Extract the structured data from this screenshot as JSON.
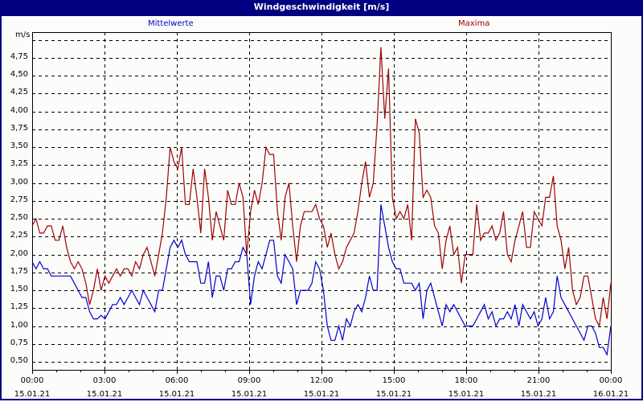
{
  "window": {
    "title": "Windgeschwindigkeit [m/s]"
  },
  "legend": {
    "mean": "Mittelwerte",
    "max": "Maxima"
  },
  "axis": {
    "unit": "m/s"
  },
  "colors": {
    "mean": "#0000d0",
    "max": "#a00000",
    "titlebar": "#000080"
  },
  "chart_data": {
    "type": "line",
    "title": "Windgeschwindigkeit [m/s]",
    "xlabel": "",
    "ylabel": "m/s",
    "ylim": [
      0.4,
      5.0
    ],
    "grid": true,
    "legend_position": "top",
    "y_ticks": [
      "0,50",
      "0,75",
      "1,00",
      "1,25",
      "1,50",
      "1,75",
      "2,00",
      "2,25",
      "2,50",
      "2,75",
      "3,00",
      "3,25",
      "3,50",
      "3,75",
      "4,00",
      "4,25",
      "4,50",
      "4,75"
    ],
    "x_ticks": [
      {
        "time": "00:00",
        "date": "15.01.21"
      },
      {
        "time": "03:00",
        "date": "15.01.21"
      },
      {
        "time": "06:00",
        "date": "15.01.21"
      },
      {
        "time": "09:00",
        "date": "15.01.21"
      },
      {
        "time": "12:00",
        "date": "15.01.21"
      },
      {
        "time": "15:00",
        "date": "15.01.21"
      },
      {
        "time": "18:00",
        "date": "15.01.21"
      },
      {
        "time": "21:00",
        "date": "15.01.21"
      },
      {
        "time": "00:00",
        "date": "16.01.21"
      }
    ],
    "x_interval_minutes": 10,
    "series": [
      {
        "name": "Mittelwerte",
        "values": [
          1.9,
          1.8,
          1.9,
          1.8,
          1.8,
          1.7,
          1.7,
          1.7,
          1.7,
          1.7,
          1.7,
          1.6,
          1.5,
          1.4,
          1.4,
          1.2,
          1.1,
          1.1,
          1.15,
          1.1,
          1.2,
          1.3,
          1.3,
          1.4,
          1.3,
          1.4,
          1.5,
          1.4,
          1.3,
          1.5,
          1.4,
          1.3,
          1.2,
          1.5,
          1.5,
          1.8,
          2.1,
          2.2,
          2.1,
          2.2,
          2.0,
          1.9,
          1.9,
          1.9,
          1.6,
          1.6,
          1.9,
          1.4,
          1.7,
          1.7,
          1.5,
          1.8,
          1.8,
          1.9,
          1.9,
          2.1,
          2.0,
          1.3,
          1.7,
          1.9,
          1.8,
          2.0,
          2.2,
          2.2,
          1.7,
          1.6,
          2.0,
          1.9,
          1.8,
          1.3,
          1.5,
          1.5,
          1.5,
          1.6,
          1.9,
          1.8,
          1.5,
          1.0,
          0.8,
          0.8,
          1.0,
          0.8,
          1.1,
          1.0,
          1.2,
          1.3,
          1.2,
          1.4,
          1.7,
          1.5,
          1.5,
          2.7,
          2.4,
          2.1,
          1.9,
          1.8,
          1.8,
          1.6,
          1.6,
          1.6,
          1.5,
          1.6,
          1.1,
          1.5,
          1.6,
          1.4,
          1.2,
          1.0,
          1.3,
          1.2,
          1.3,
          1.2,
          1.1,
          1.0,
          1.0,
          1.0,
          1.1,
          1.2,
          1.3,
          1.1,
          1.2,
          1.0,
          1.1,
          1.1,
          1.2,
          1.1,
          1.3,
          1.0,
          1.3,
          1.2,
          1.1,
          1.2,
          1.0,
          1.1,
          1.4,
          1.1,
          1.2,
          1.7,
          1.4,
          1.3,
          1.2,
          1.1,
          1.0,
          0.9,
          0.8,
          1.0,
          1.0,
          0.9,
          0.7,
          0.7,
          0.6,
          1.0
        ]
      },
      {
        "name": "Maxima",
        "values": [
          2.4,
          2.5,
          2.3,
          2.3,
          2.4,
          2.4,
          2.2,
          2.2,
          2.4,
          2.1,
          1.9,
          1.8,
          1.9,
          1.8,
          1.6,
          1.3,
          1.5,
          1.8,
          1.5,
          1.7,
          1.6,
          1.7,
          1.8,
          1.7,
          1.8,
          1.8,
          1.7,
          1.9,
          1.8,
          2.0,
          2.1,
          1.9,
          1.7,
          2.0,
          2.3,
          2.8,
          3.5,
          3.3,
          3.2,
          3.5,
          2.7,
          2.7,
          3.2,
          2.8,
          2.3,
          3.2,
          2.8,
          2.2,
          2.6,
          2.4,
          2.2,
          2.9,
          2.7,
          2.7,
          3.0,
          2.8,
          2.0,
          2.6,
          2.9,
          2.7,
          3.0,
          3.5,
          3.4,
          3.4,
          2.6,
          2.2,
          2.8,
          3.0,
          2.4,
          1.9,
          2.4,
          2.6,
          2.6,
          2.6,
          2.7,
          2.5,
          2.4,
          2.1,
          2.3,
          2.0,
          1.8,
          1.9,
          2.1,
          2.2,
          2.3,
          2.6,
          3.0,
          3.3,
          2.8,
          3.0,
          3.8,
          4.9,
          3.9,
          4.6,
          2.8,
          2.5,
          2.6,
          2.5,
          2.7,
          2.2,
          3.9,
          3.7,
          2.8,
          2.9,
          2.8,
          2.4,
          2.3,
          1.8,
          2.2,
          2.4,
          2.0,
          2.1,
          1.6,
          2.0,
          2.0,
          2.0,
          2.7,
          2.2,
          2.3,
          2.3,
          2.4,
          2.2,
          2.3,
          2.6,
          2.0,
          1.9,
          2.2,
          2.4,
          2.6,
          2.1,
          2.1,
          2.6,
          2.5,
          2.4,
          2.8,
          2.8,
          3.1,
          2.4,
          2.2,
          1.8,
          2.1,
          1.5,
          1.3,
          1.4,
          1.7,
          1.7,
          1.4,
          1.1,
          1.0,
          1.4,
          1.1,
          1.6
        ]
      }
    ]
  }
}
